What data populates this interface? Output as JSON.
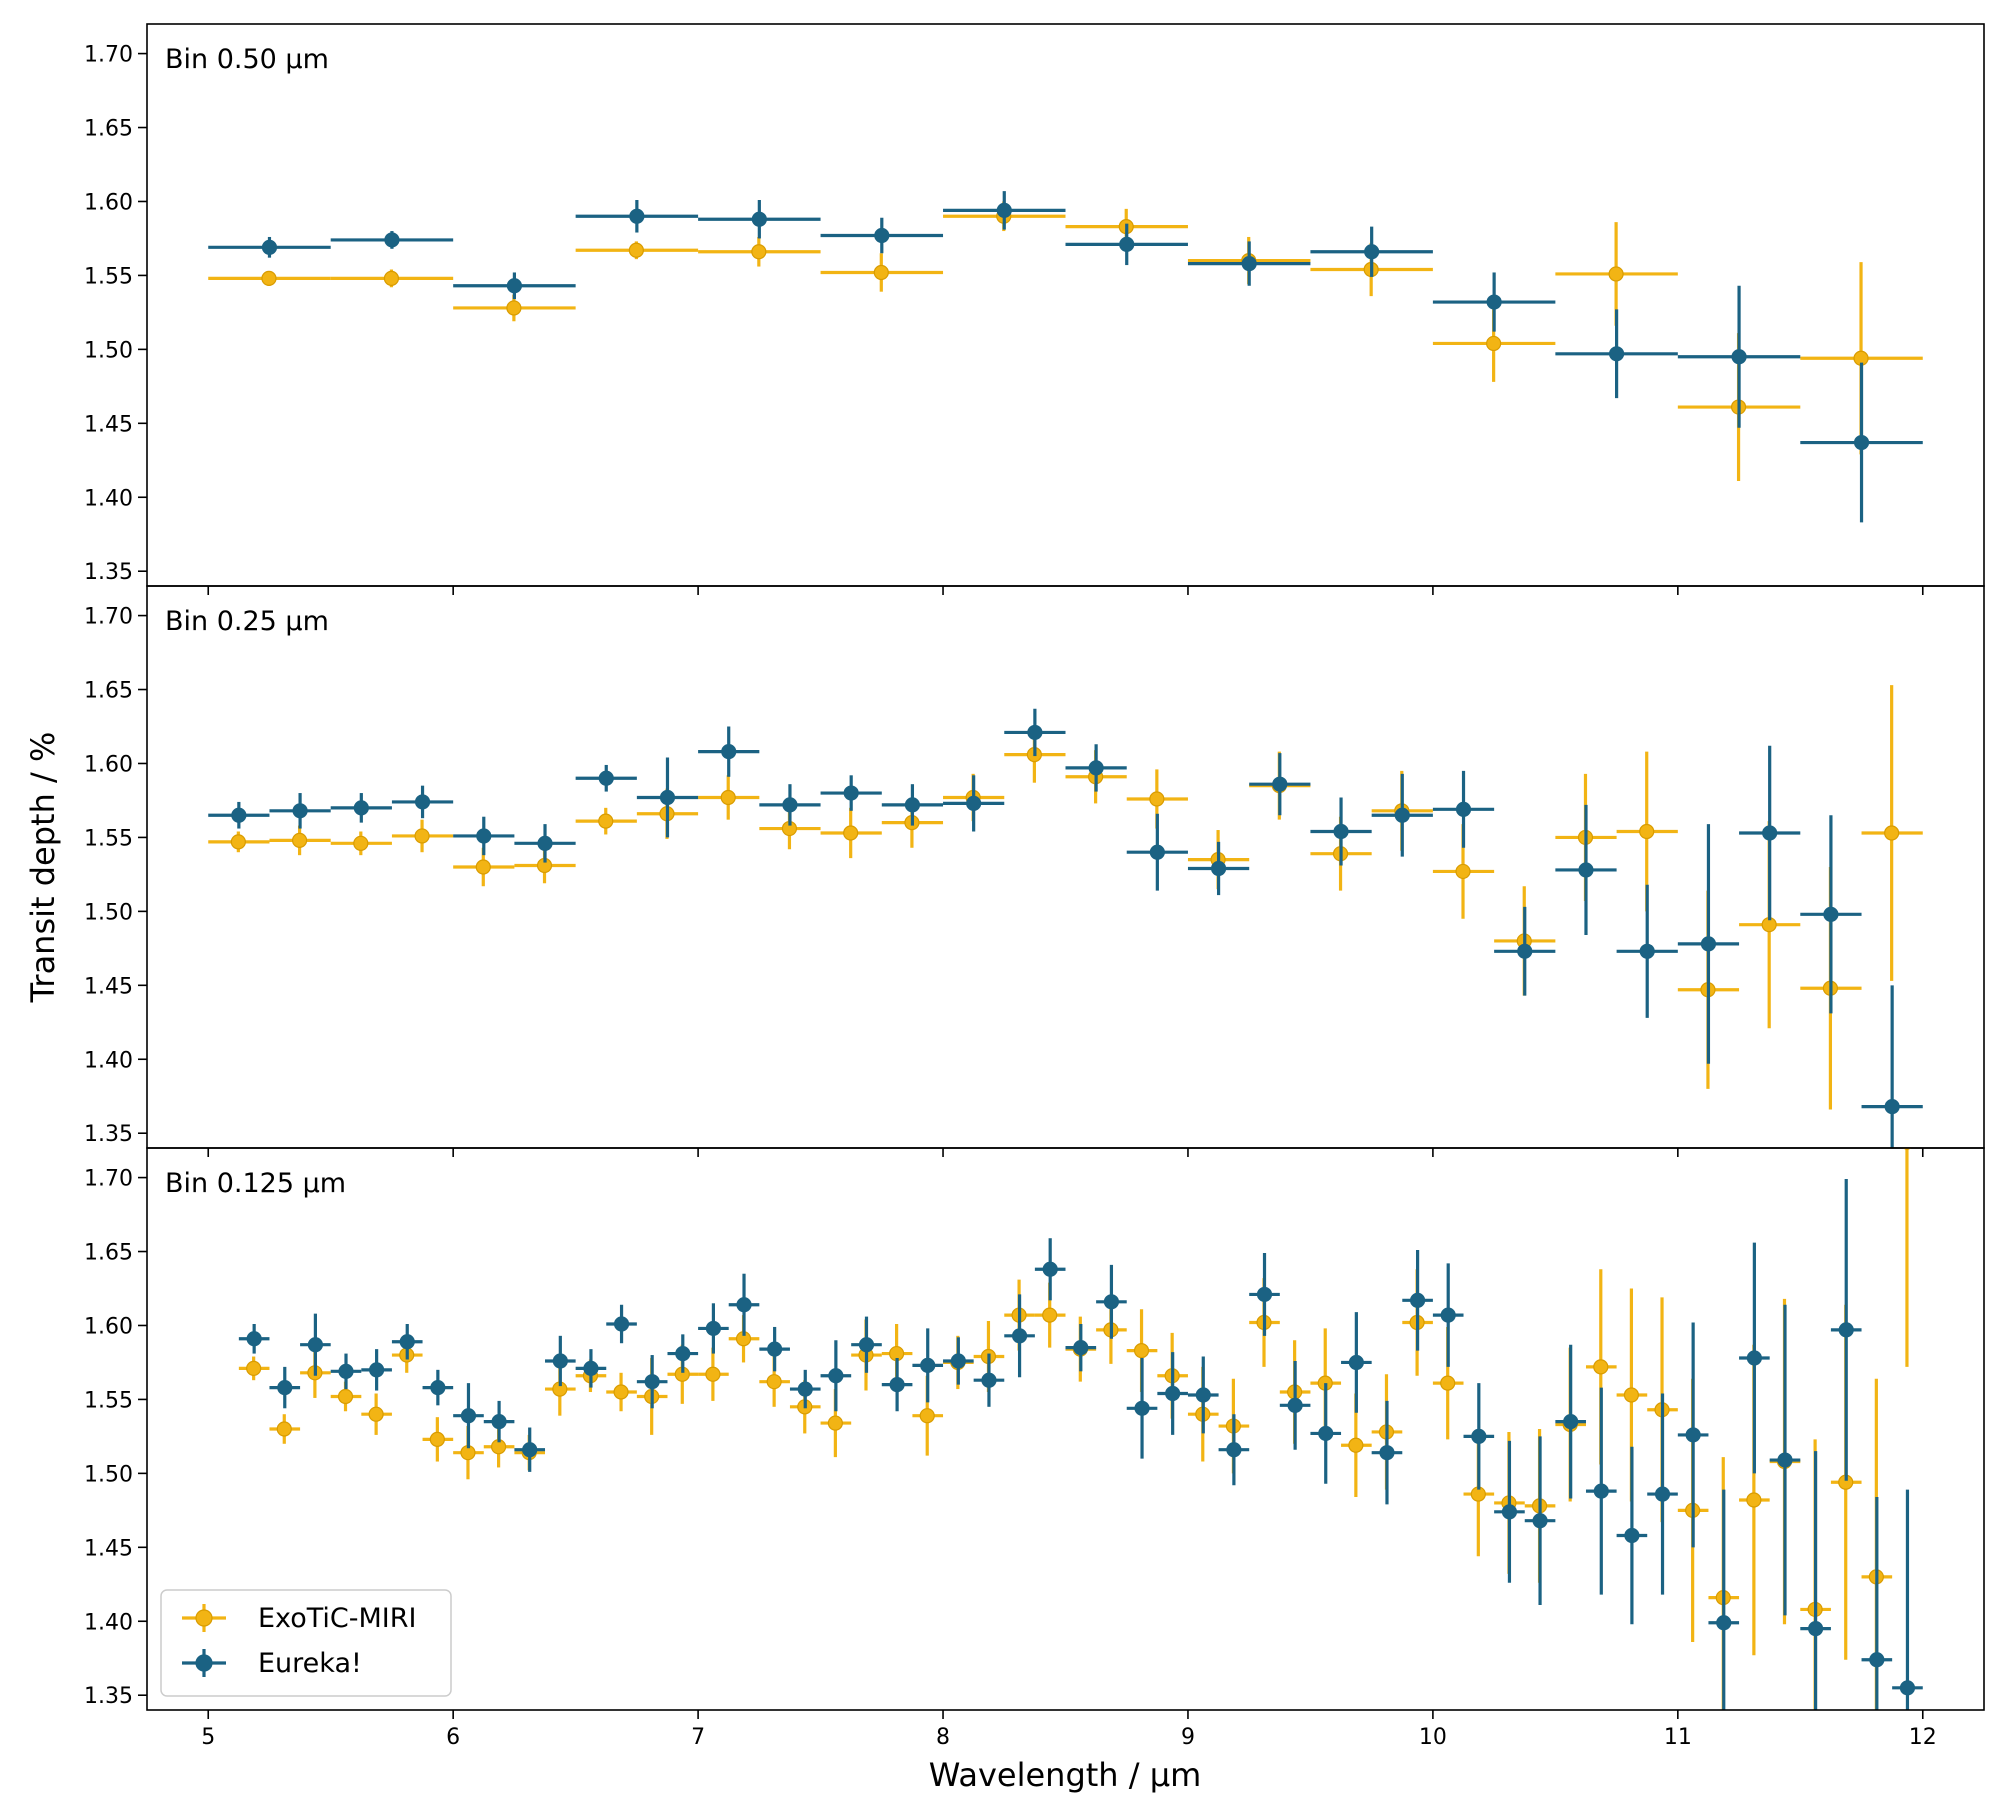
{
  "colors": {
    "exotic": "#f2b414",
    "exotic_edge": "#d99c00",
    "eureka": "#1b6283"
  },
  "chart_data": {
    "type": "scatter",
    "xlabel": "Wavelength / µm",
    "ylabel": "Transit depth / %",
    "xlim": [
      4.75,
      12.25
    ],
    "xticks": [
      5,
      6,
      7,
      8,
      9,
      10,
      11,
      12
    ],
    "ylim": [
      1.34,
      1.72
    ],
    "yticks": [
      1.35,
      1.4,
      1.45,
      1.5,
      1.55,
      1.6,
      1.65,
      1.7
    ],
    "legend": {
      "position": "lower-left",
      "entries": [
        "ExoTiC-MIRI",
        "Eureka!"
      ]
    },
    "panels": [
      {
        "label": "Bin 0.50 µm",
        "bin_width": 0.5,
        "series": [
          {
            "name": "ExoTiC-MIRI",
            "x": [
              5.25,
              5.75,
              6.25,
              6.75,
              7.25,
              7.75,
              8.25,
              8.75,
              9.25,
              9.75,
              10.25,
              10.75,
              11.25,
              11.75
            ],
            "y": [
              1.548,
              1.548,
              1.528,
              1.567,
              1.566,
              1.552,
              1.59,
              1.583,
              1.56,
              1.554,
              1.504,
              1.551,
              1.461,
              1.494
            ],
            "yerr": [
              0.005,
              0.006,
              0.009,
              0.006,
              0.01,
              0.013,
              0.01,
              0.012,
              0.016,
              0.018,
              0.026,
              0.035,
              0.05,
              0.065
            ]
          },
          {
            "name": "Eureka!",
            "x": [
              5.25,
              5.75,
              6.25,
              6.75,
              7.25,
              7.75,
              8.25,
              8.75,
              9.25,
              9.75,
              10.25,
              10.75,
              11.25,
              11.75
            ],
            "y": [
              1.569,
              1.574,
              1.543,
              1.59,
              1.588,
              1.577,
              1.594,
              1.571,
              1.558,
              1.566,
              1.532,
              1.497,
              1.495,
              1.437
            ],
            "yerr": [
              0.007,
              0.006,
              0.009,
              0.011,
              0.013,
              0.012,
              0.013,
              0.014,
              0.015,
              0.017,
              0.02,
              0.03,
              0.048,
              0.054
            ]
          }
        ]
      },
      {
        "label": "Bin 0.25 µm",
        "bin_width": 0.25,
        "series": [
          {
            "name": "ExoTiC-MIRI",
            "x": [
              5.125,
              5.375,
              5.625,
              5.875,
              6.125,
              6.375,
              6.625,
              6.875,
              7.125,
              7.375,
              7.625,
              7.875,
              8.125,
              8.375,
              8.625,
              8.875,
              9.125,
              9.375,
              9.625,
              9.875,
              10.125,
              10.375,
              10.625,
              10.875,
              11.125,
              11.375,
              11.625,
              11.875
            ],
            "y": [
              1.547,
              1.548,
              1.546,
              1.551,
              1.53,
              1.531,
              1.561,
              1.566,
              1.577,
              1.556,
              1.553,
              1.56,
              1.577,
              1.606,
              1.591,
              1.576,
              1.535,
              1.585,
              1.539,
              1.568,
              1.527,
              1.48,
              1.55,
              1.554,
              1.447,
              1.491,
              1.448,
              1.553
            ],
            "yerr": [
              0.007,
              0.01,
              0.008,
              0.011,
              0.013,
              0.012,
              0.009,
              0.017,
              0.015,
              0.014,
              0.017,
              0.017,
              0.016,
              0.019,
              0.018,
              0.02,
              0.02,
              0.023,
              0.025,
              0.027,
              0.032,
              0.037,
              0.043,
              0.054,
              0.067,
              0.07,
              0.082,
              0.1
            ]
          },
          {
            "name": "Eureka!",
            "x": [
              5.125,
              5.375,
              5.625,
              5.875,
              6.125,
              6.375,
              6.625,
              6.875,
              7.125,
              7.375,
              7.625,
              7.875,
              8.125,
              8.375,
              8.625,
              8.875,
              9.125,
              9.375,
              9.625,
              9.875,
              10.125,
              10.375,
              10.625,
              10.875,
              11.125,
              11.375,
              11.625,
              11.875
            ],
            "y": [
              1.565,
              1.568,
              1.57,
              1.574,
              1.551,
              1.546,
              1.59,
              1.577,
              1.608,
              1.572,
              1.58,
              1.572,
              1.573,
              1.621,
              1.597,
              1.54,
              1.529,
              1.586,
              1.554,
              1.565,
              1.569,
              1.473,
              1.528,
              1.473,
              1.478,
              1.553,
              1.498,
              1.368
            ],
            "yerr": [
              0.009,
              0.012,
              0.01,
              0.011,
              0.013,
              0.013,
              0.009,
              0.027,
              0.017,
              0.014,
              0.012,
              0.014,
              0.019,
              0.016,
              0.016,
              0.026,
              0.018,
              0.021,
              0.023,
              0.028,
              0.026,
              0.03,
              0.044,
              0.045,
              0.081,
              0.059,
              0.067,
              0.082
            ]
          }
        ]
      },
      {
        "label": "Bin 0.125 µm",
        "bin_width": 0.125,
        "series": [
          {
            "name": "ExoTiC-MIRI",
            "x": [
              5.1875,
              5.3125,
              5.4375,
              5.5625,
              5.6875,
              5.8125,
              5.9375,
              6.0625,
              6.1875,
              6.3125,
              6.4375,
              6.5625,
              6.6875,
              6.8125,
              6.9375,
              7.0625,
              7.1875,
              7.3125,
              7.4375,
              7.5625,
              7.6875,
              7.8125,
              7.9375,
              8.0625,
              8.1875,
              8.3125,
              8.4375,
              8.5625,
              8.6875,
              8.8125,
              8.9375,
              9.0625,
              9.1875,
              9.3125,
              9.4375,
              9.5625,
              9.6875,
              9.8125,
              9.9375,
              10.0625,
              10.1875,
              10.3125,
              10.4375,
              10.5625,
              10.6875,
              10.8125,
              10.9375,
              11.0625,
              11.1875,
              11.3125,
              11.4375,
              11.5625,
              11.6875,
              11.8125,
              11.9375
            ],
            "y": [
              1.571,
              1.53,
              1.568,
              1.552,
              1.54,
              1.58,
              1.523,
              1.514,
              1.518,
              1.514,
              1.557,
              1.566,
              1.555,
              1.552,
              1.567,
              1.567,
              1.591,
              1.562,
              1.545,
              1.534,
              1.58,
              1.581,
              1.539,
              1.575,
              1.579,
              1.607,
              1.607,
              1.584,
              1.597,
              1.583,
              1.566,
              1.54,
              1.532,
              1.602,
              1.555,
              1.561,
              1.519,
              1.528,
              1.602,
              1.561,
              1.486,
              1.48,
              1.478,
              1.533,
              1.572,
              1.553,
              1.543,
              1.475,
              1.416,
              1.482,
              1.508,
              1.408,
              1.494,
              1.43,
              1.724
            ],
            "yerr": [
              0.008,
              0.01,
              0.017,
              0.01,
              0.014,
              0.012,
              0.015,
              0.018,
              0.014,
              0.012,
              0.018,
              0.011,
              0.013,
              0.026,
              0.02,
              0.018,
              0.016,
              0.017,
              0.018,
              0.023,
              0.024,
              0.02,
              0.027,
              0.018,
              0.024,
              0.024,
              0.022,
              0.022,
              0.023,
              0.028,
              0.029,
              0.032,
              0.032,
              0.03,
              0.035,
              0.037,
              0.035,
              0.039,
              0.036,
              0.038,
              0.042,
              0.048,
              0.052,
              0.052,
              0.066,
              0.072,
              0.076,
              0.089,
              0.095,
              0.105,
              0.11,
              0.115,
              0.12,
              0.134,
              0.152
            ]
          },
          {
            "name": "Eureka!",
            "x": [
              5.1875,
              5.3125,
              5.4375,
              5.5625,
              5.6875,
              5.8125,
              5.9375,
              6.0625,
              6.1875,
              6.3125,
              6.4375,
              6.5625,
              6.6875,
              6.8125,
              6.9375,
              7.0625,
              7.1875,
              7.3125,
              7.4375,
              7.5625,
              7.6875,
              7.8125,
              7.9375,
              8.0625,
              8.1875,
              8.3125,
              8.4375,
              8.5625,
              8.6875,
              8.8125,
              8.9375,
              9.0625,
              9.1875,
              9.3125,
              9.4375,
              9.5625,
              9.6875,
              9.8125,
              9.9375,
              10.0625,
              10.1875,
              10.3125,
              10.4375,
              10.5625,
              10.6875,
              10.8125,
              10.9375,
              11.0625,
              11.1875,
              11.3125,
              11.4375,
              11.5625,
              11.6875,
              11.8125,
              11.9375
            ],
            "y": [
              1.591,
              1.558,
              1.587,
              1.569,
              1.57,
              1.589,
              1.558,
              1.539,
              1.535,
              1.516,
              1.576,
              1.571,
              1.601,
              1.562,
              1.581,
              1.598,
              1.614,
              1.584,
              1.557,
              1.566,
              1.587,
              1.56,
              1.573,
              1.576,
              1.563,
              1.593,
              1.638,
              1.585,
              1.616,
              1.544,
              1.554,
              1.553,
              1.516,
              1.621,
              1.546,
              1.527,
              1.575,
              1.514,
              1.617,
              1.607,
              1.525,
              1.474,
              1.468,
              1.535,
              1.488,
              1.458,
              1.486,
              1.526,
              1.399,
              1.578,
              1.509,
              1.395,
              1.597,
              1.374,
              1.355
            ],
            "yerr": [
              0.01,
              0.014,
              0.021,
              0.012,
              0.014,
              0.012,
              0.012,
              0.022,
              0.014,
              0.015,
              0.017,
              0.013,
              0.013,
              0.018,
              0.013,
              0.017,
              0.021,
              0.015,
              0.013,
              0.024,
              0.019,
              0.018,
              0.025,
              0.016,
              0.018,
              0.028,
              0.021,
              0.016,
              0.025,
              0.034,
              0.028,
              0.026,
              0.024,
              0.028,
              0.03,
              0.034,
              0.034,
              0.035,
              0.034,
              0.035,
              0.036,
              0.048,
              0.057,
              0.052,
              0.07,
              0.06,
              0.068,
              0.076,
              0.09,
              0.078,
              0.105,
              0.12,
              0.102,
              0.11,
              0.134
            ]
          }
        ]
      }
    ]
  }
}
